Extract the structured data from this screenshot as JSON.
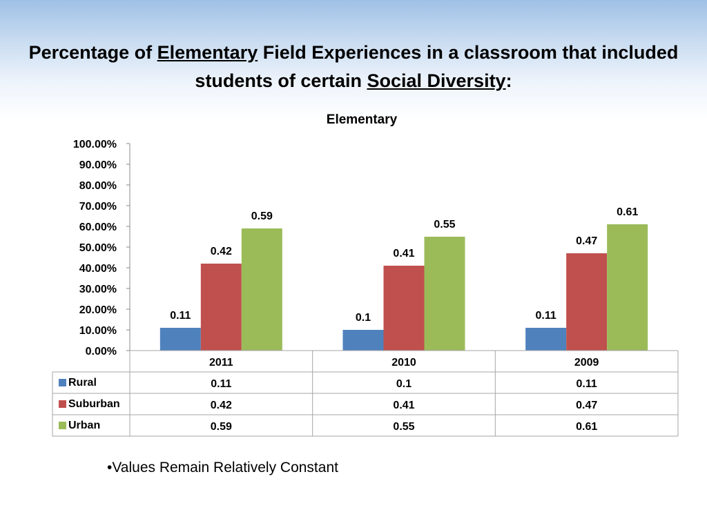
{
  "slide": {
    "title_parts": [
      "Percentage of ",
      "Elementary",
      " Field Experiences in a classroom that included students of certain ",
      "Social Diversity",
      ":"
    ],
    "bullet": "•Values Remain Relatively Constant"
  },
  "chart_data": {
    "type": "bar",
    "title": "Elementary",
    "categories": [
      "2011",
      "2010",
      "2009"
    ],
    "series": [
      {
        "name": "Rural",
        "color": "#4f81bd",
        "values": [
          0.11,
          0.1,
          0.11
        ],
        "labels": [
          "0.11",
          "0.1",
          "0.11"
        ]
      },
      {
        "name": "Suburban",
        "color": "#c0504d",
        "values": [
          0.42,
          0.41,
          0.47
        ],
        "labels": [
          "0.42",
          "0.41",
          "0.47"
        ]
      },
      {
        "name": "Urban",
        "color": "#9bbb59",
        "values": [
          0.59,
          0.55,
          0.61
        ],
        "labels": [
          "0.59",
          "0.55",
          "0.61"
        ]
      }
    ],
    "ylim": [
      0,
      1
    ],
    "yticks": [
      "0.00%",
      "10.00%",
      "20.00%",
      "30.00%",
      "40.00%",
      "50.00%",
      "60.00%",
      "70.00%",
      "80.00%",
      "90.00%",
      "100.00%"
    ],
    "grid": false,
    "legend": "data-table-left",
    "data_table": true
  }
}
